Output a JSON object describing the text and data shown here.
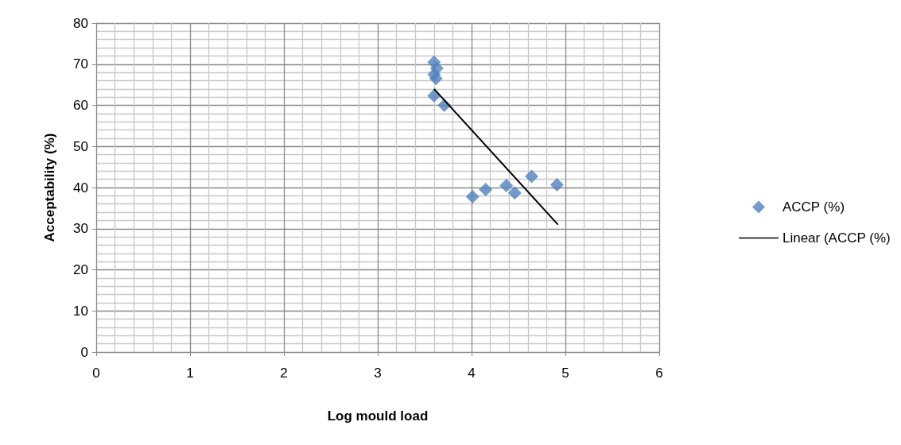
{
  "chart_data": {
    "type": "scatter",
    "xlabel": "Log mould load",
    "ylabel": "Acceptability (%)",
    "xlim": [
      0,
      6
    ],
    "xticks": [
      0,
      1,
      2,
      3,
      4,
      5,
      6
    ],
    "ylim": [
      0,
      80
    ],
    "yticks": [
      0,
      10,
      20,
      30,
      40,
      50,
      60,
      70,
      80
    ],
    "grid": true,
    "legend": "right",
    "series": [
      {
        "name": "ACCP (%)",
        "color": "#4f81bd",
        "marker": "diamond",
        "x": [
          3.6,
          3.63,
          3.6,
          3.62,
          3.6,
          3.71,
          4.01,
          4.15,
          4.37,
          4.46,
          4.64,
          4.91
        ],
        "values": [
          70.5,
          69,
          67.5,
          66.5,
          62.3,
          60,
          37.8,
          39.5,
          40.5,
          38.7,
          42.7,
          40.7
        ]
      },
      {
        "name": "Linear (ACCP (%)",
        "type": "line",
        "color": "#000000",
        "marker": "none",
        "line_style": "solid",
        "x": [
          3.6,
          4.92
        ],
        "values": [
          64,
          31
        ]
      }
    ]
  }
}
